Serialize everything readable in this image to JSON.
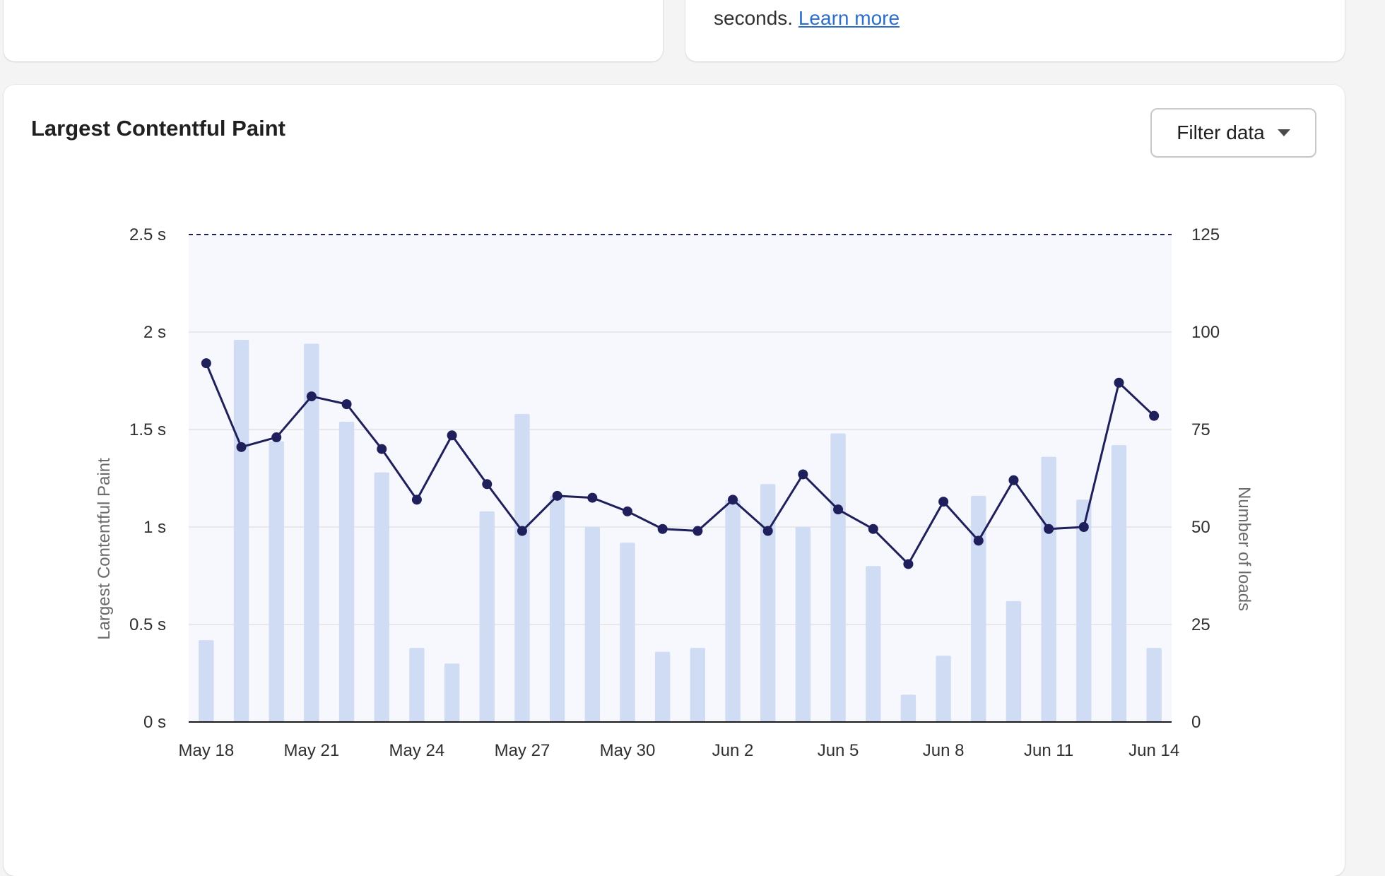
{
  "top_right_card": {
    "text": "seconds.",
    "link": "Learn more"
  },
  "chart_card": {
    "title": "Largest Contentful Paint",
    "filter_button_label": "Filter data",
    "filter_icon": "caret-down-icon"
  },
  "colors": {
    "line": "#1f1f5c",
    "bars": "#cfdcf3",
    "plot_background": "#f7f8fd",
    "threshold": "#1f1f5c"
  },
  "chart_data": {
    "type": "bar+line",
    "xlabel": "",
    "ylabel_left": "Largest Contentful Paint",
    "ylabel_right": "Number of loads",
    "ylim_left": [
      0,
      2.5
    ],
    "ylim_right": [
      0,
      125
    ],
    "left_ticks": [
      "0 s",
      "0.5 s",
      "1 s",
      "1.5 s",
      "2 s",
      "2.5 s"
    ],
    "right_ticks": [
      "0",
      "25",
      "50",
      "75",
      "100",
      "125"
    ],
    "threshold": 2.5,
    "grid": true,
    "x_tick_labels": [
      "May 18",
      "May 21",
      "May 24",
      "May 27",
      "May 30",
      "Jun 2",
      "Jun 5",
      "Jun 8",
      "Jun 11",
      "Jun 14"
    ],
    "categories": [
      "May 18",
      "May 19",
      "May 20",
      "May 21",
      "May 22",
      "May 23",
      "May 24",
      "May 25",
      "May 26",
      "May 27",
      "May 28",
      "May 29",
      "May 30",
      "May 31",
      "Jun 1",
      "Jun 2",
      "Jun 3",
      "Jun 4",
      "Jun 5",
      "Jun 6",
      "Jun 7",
      "Jun 8",
      "Jun 9",
      "Jun 10",
      "Jun 11",
      "Jun 12",
      "Jun 13",
      "Jun 14"
    ],
    "series": [
      {
        "name": "Number of loads",
        "type": "bar",
        "axis": "right",
        "values": [
          21,
          98,
          72,
          97,
          77,
          64,
          19,
          15,
          54,
          79,
          58,
          50,
          46,
          18,
          19,
          57,
          61,
          50,
          74,
          40,
          7,
          17,
          58,
          31,
          68,
          57,
          71,
          19
        ]
      },
      {
        "name": "Largest Contentful Paint",
        "type": "line",
        "axis": "left",
        "values": [
          1.84,
          1.41,
          1.46,
          1.67,
          1.63,
          1.4,
          1.14,
          1.47,
          1.22,
          0.98,
          1.16,
          1.15,
          1.08,
          0.99,
          0.98,
          1.14,
          0.98,
          1.27,
          1.09,
          0.99,
          0.81,
          1.13,
          0.93,
          1.24,
          0.99,
          1.0,
          1.74,
          1.57
        ]
      }
    ]
  }
}
